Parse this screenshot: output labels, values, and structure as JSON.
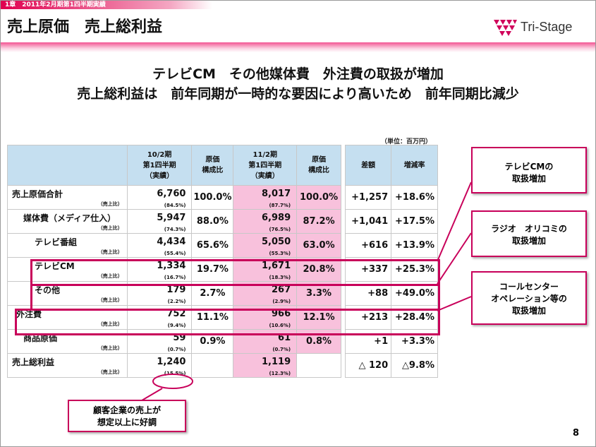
{
  "breadcrumb": "1章　2011年2月期第1四半期実績",
  "page_title": "売上原価　売上総利益",
  "logo_text": "Tri-Stage",
  "headline1": "テレビCM　その他媒体費　外注費の取扱が増加",
  "headline2": "売上総利益は　前年同期が一時的な要因により高いため　前年同期比減少",
  "unit_note": "（単位：百万円）",
  "table": {
    "headers": {
      "prev": [
        "10/2期",
        "第1四半期",
        "（実績）"
      ],
      "prev_ratio": [
        "原価",
        "構成比"
      ],
      "cur": [
        "11/2期",
        "第1四半期",
        "（実績）"
      ],
      "cur_ratio": [
        "原価",
        "構成比"
      ],
      "diff": "差額",
      "rate": "増減率"
    },
    "sub_label": "（売上比）",
    "rows": [
      {
        "label": "売上原価合計",
        "prev": "6,760",
        "prev_pct": "(84.5%)",
        "prev_ratio": "100.0%",
        "cur": "8,017",
        "cur_pct": "(87.7%)",
        "cur_ratio": "100.0%",
        "diff": "+1,257",
        "rate": "+18.6%"
      },
      {
        "label": "媒体費（メディア仕入）",
        "prev": "5,947",
        "prev_pct": "(74.3%)",
        "prev_ratio": "88.0%",
        "cur": "6,989",
        "cur_pct": "(76.5%)",
        "cur_ratio": "87.2%",
        "diff": "+1,041",
        "rate": "+17.5%"
      },
      {
        "label": "テレビ番組",
        "prev": "4,434",
        "prev_pct": "(55.4%)",
        "prev_ratio": "65.6%",
        "cur": "5,050",
        "cur_pct": "(55.3%)",
        "cur_ratio": "63.0%",
        "diff": "+616",
        "rate": "+13.9%"
      },
      {
        "label": "テレビCM",
        "prev": "1,334",
        "prev_pct": "(16.7%)",
        "prev_ratio": "19.7%",
        "cur": "1,671",
        "cur_pct": "(18.3%)",
        "cur_ratio": "20.8%",
        "diff": "+337",
        "rate": "+25.3%"
      },
      {
        "label": "その他",
        "prev": "179",
        "prev_pct": "(2.2%)",
        "prev_ratio": "2.7%",
        "cur": "267",
        "cur_pct": "(2.9%)",
        "cur_ratio": "3.3%",
        "diff": "+88",
        "rate": "+49.0%"
      },
      {
        "label": "外注費",
        "prev": "752",
        "prev_pct": "(9.4%)",
        "prev_ratio": "11.1%",
        "cur": "966",
        "cur_pct": "(10.6%)",
        "cur_ratio": "12.1%",
        "diff": "+213",
        "rate": "+28.4%"
      },
      {
        "label": "商品原価",
        "prev": "59",
        "prev_pct": "(0.7%)",
        "prev_ratio": "0.9%",
        "cur": "61",
        "cur_pct": "(0.7%)",
        "cur_ratio": "0.8%",
        "diff": "+1",
        "rate": "+3.3%"
      },
      {
        "label": "売上総利益",
        "prev": "1,240",
        "prev_pct": "(15.5%)",
        "prev_ratio": "",
        "cur": "1,119",
        "cur_pct": "(12.3%)",
        "cur_ratio": "",
        "diff": "△ 120",
        "rate": "△9.8%"
      }
    ]
  },
  "callouts": {
    "tvcm": [
      "テレビCMの",
      "取扱増加"
    ],
    "radio": [
      "ラジオ　オリコミの",
      "取扱増加"
    ],
    "callcenter": [
      "コールセンター",
      "オペレーション等の",
      "取扱増加"
    ],
    "client": [
      "顧客企業の売上が",
      "想定以上に好調"
    ]
  },
  "page_number": "8",
  "colors": {
    "accent": "#c8005a",
    "highlight": "#f8c1dc",
    "header": "#c5dff0"
  }
}
